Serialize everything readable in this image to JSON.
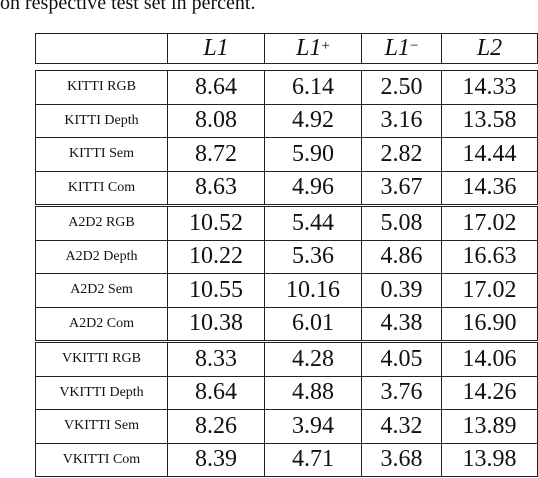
{
  "caption_fragment": "on respective test set in percent.",
  "table": {
    "header": [
      {
        "main": "L1"
      },
      {
        "main": "L1",
        "sup": "+"
      },
      {
        "main": "L1",
        "sup": "−"
      },
      {
        "main": "L2"
      }
    ],
    "groups": [
      {
        "rows": [
          {
            "label": "KITTI RGB",
            "values": [
              "8.64",
              "6.14",
              "2.50",
              "14.33"
            ]
          },
          {
            "label": "KITTI Depth",
            "values": [
              "8.08",
              "4.92",
              "3.16",
              "13.58"
            ]
          },
          {
            "label": "KITTI Sem",
            "values": [
              "8.72",
              "5.90",
              "2.82",
              "14.44"
            ]
          },
          {
            "label": "KITTI Com",
            "values": [
              "8.63",
              "4.96",
              "3.67",
              "14.36"
            ]
          }
        ]
      },
      {
        "rows": [
          {
            "label": "A2D2 RGB",
            "values": [
              "10.52",
              "5.44",
              "5.08",
              "17.02"
            ]
          },
          {
            "label": "A2D2 Depth",
            "values": [
              "10.22",
              "5.36",
              "4.86",
              "16.63"
            ]
          },
          {
            "label": "A2D2 Sem",
            "values": [
              "10.55",
              "10.16",
              "0.39",
              "17.02"
            ]
          },
          {
            "label": "A2D2 Com",
            "values": [
              "10.38",
              "6.01",
              "4.38",
              "16.90"
            ]
          }
        ]
      },
      {
        "rows": [
          {
            "label": "VKITTI RGB",
            "values": [
              "8.33",
              "4.28",
              "4.05",
              "14.06"
            ]
          },
          {
            "label": "VKITTI Depth",
            "values": [
              "8.64",
              "4.88",
              "3.76",
              "14.26"
            ]
          },
          {
            "label": "VKITTI Sem",
            "values": [
              "8.26",
              "3.94",
              "4.32",
              "13.89"
            ]
          },
          {
            "label": "VKITTI Com",
            "values": [
              "8.39",
              "4.71",
              "3.68",
              "13.98"
            ]
          }
        ]
      }
    ]
  }
}
